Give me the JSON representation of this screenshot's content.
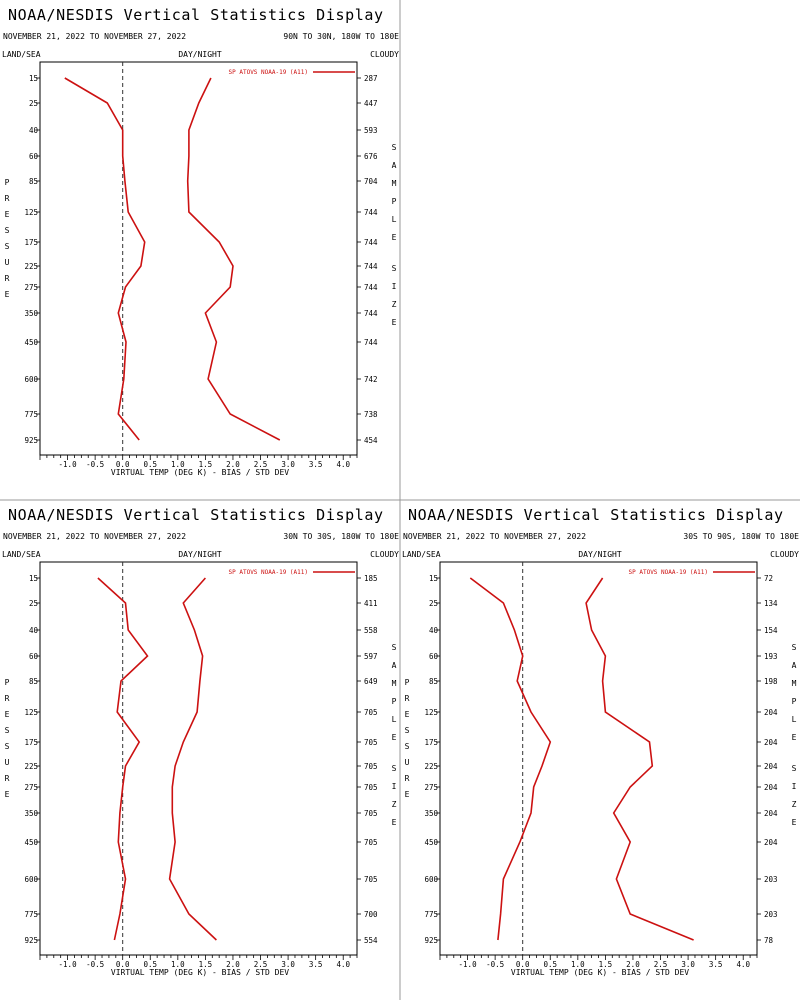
{
  "colors": {
    "series": "#cc1111",
    "divider": "#999999",
    "axis": "#000000"
  },
  "common": {
    "app_title": "NOAA/NESDIS Vertical Statistics Display",
    "date_range": "NOVEMBER 21, 2022 TO NOVEMBER 27, 2022",
    "land_sea": "LAND/SEA",
    "day_night": "DAY/NIGHT",
    "cloudy": "CLOUDY",
    "left_axis_label": "PRESSURE",
    "right_axis_label": "SAMPLE SIZE",
    "legend_label": "SP ATOVS NOAA-19 (A11)"
  },
  "chart_data": [
    {
      "id": "panel-1",
      "type": "line",
      "region": "90N TO 30N, 180W TO 180E",
      "xlabel": "VIRTUAL TEMP (DEG K) - BIAS / STD DEV",
      "xticks": [
        "-1.0",
        "-0.5",
        "0.0",
        "0.5",
        "1.0",
        "1.5",
        "2.0",
        "2.5",
        "3.0",
        "3.5",
        "4.0"
      ],
      "xlim": [
        -1.5,
        4.25
      ],
      "pressure_levels": [
        "15",
        "25",
        "40",
        "60",
        "85",
        "125",
        "175",
        "225",
        "275",
        "350",
        "450",
        "600",
        "775",
        "925"
      ],
      "sample_sizes": [
        "287",
        "447",
        "593",
        "676",
        "704",
        "744",
        "744",
        "744",
        "744",
        "744",
        "744",
        "742",
        "738",
        "454"
      ],
      "series": [
        {
          "name": "bias",
          "values": [
            -1.05,
            -0.28,
            0.0,
            0.0,
            0.04,
            0.1,
            0.4,
            0.33,
            0.05,
            -0.08,
            0.06,
            0.02,
            -0.08,
            0.3
          ]
        },
        {
          "name": "std_dev",
          "values": [
            1.6,
            1.38,
            1.2,
            1.2,
            1.18,
            1.2,
            1.75,
            2.0,
            1.95,
            1.5,
            1.7,
            1.55,
            1.95,
            2.85
          ]
        }
      ]
    },
    {
      "id": "panel-2",
      "type": "line",
      "region": "30N TO 30S, 180W TO 180E",
      "xlabel": "VIRTUAL TEMP (DEG K) - BIAS / STD DEV",
      "xticks": [
        "-1.0",
        "-0.5",
        "0.0",
        "0.5",
        "1.0",
        "1.5",
        "2.0",
        "2.5",
        "3.0",
        "3.5",
        "4.0"
      ],
      "xlim": [
        -1.5,
        4.25
      ],
      "pressure_levels": [
        "15",
        "25",
        "40",
        "60",
        "85",
        "125",
        "175",
        "225",
        "275",
        "350",
        "450",
        "600",
        "775",
        "925"
      ],
      "sample_sizes": [
        "185",
        "411",
        "558",
        "597",
        "649",
        "705",
        "705",
        "705",
        "705",
        "705",
        "705",
        "705",
        "700",
        "554"
      ],
      "series": [
        {
          "name": "bias",
          "values": [
            -0.45,
            0.05,
            0.1,
            0.45,
            -0.03,
            -0.1,
            0.3,
            0.05,
            0.0,
            -0.05,
            -0.08,
            0.05,
            -0.05,
            -0.15
          ]
        },
        {
          "name": "std_dev",
          "values": [
            1.5,
            1.1,
            1.3,
            1.45,
            1.4,
            1.35,
            1.1,
            0.95,
            0.9,
            0.9,
            0.95,
            0.85,
            1.2,
            1.7
          ]
        }
      ]
    },
    {
      "id": "panel-3",
      "type": "line",
      "region": "30S TO 90S, 180W TO 180E",
      "xlabel": "VIRTUAL TEMP (DEG K) - BIAS / STD DEV",
      "xticks": [
        "-1.0",
        "-0.5",
        "0.0",
        "0.5",
        "1.0",
        "1.5",
        "2.0",
        "2.5",
        "3.0",
        "3.5",
        "4.0"
      ],
      "xlim": [
        -1.5,
        4.25
      ],
      "pressure_levels": [
        "15",
        "25",
        "40",
        "60",
        "85",
        "125",
        "175",
        "225",
        "275",
        "350",
        "450",
        "600",
        "775",
        "925"
      ],
      "sample_sizes": [
        "72",
        "134",
        "154",
        "193",
        "198",
        "204",
        "204",
        "204",
        "204",
        "204",
        "204",
        "203",
        "203",
        "78"
      ],
      "series": [
        {
          "name": "bias",
          "values": [
            -0.95,
            -0.35,
            -0.15,
            0.0,
            -0.1,
            0.15,
            0.5,
            0.35,
            0.2,
            0.15,
            -0.05,
            -0.35,
            -0.4,
            -0.45
          ]
        },
        {
          "name": "std_dev",
          "values": [
            1.45,
            1.15,
            1.25,
            1.5,
            1.45,
            1.5,
            2.3,
            2.35,
            1.95,
            1.65,
            1.95,
            1.7,
            1.95,
            3.1
          ]
        }
      ]
    }
  ]
}
